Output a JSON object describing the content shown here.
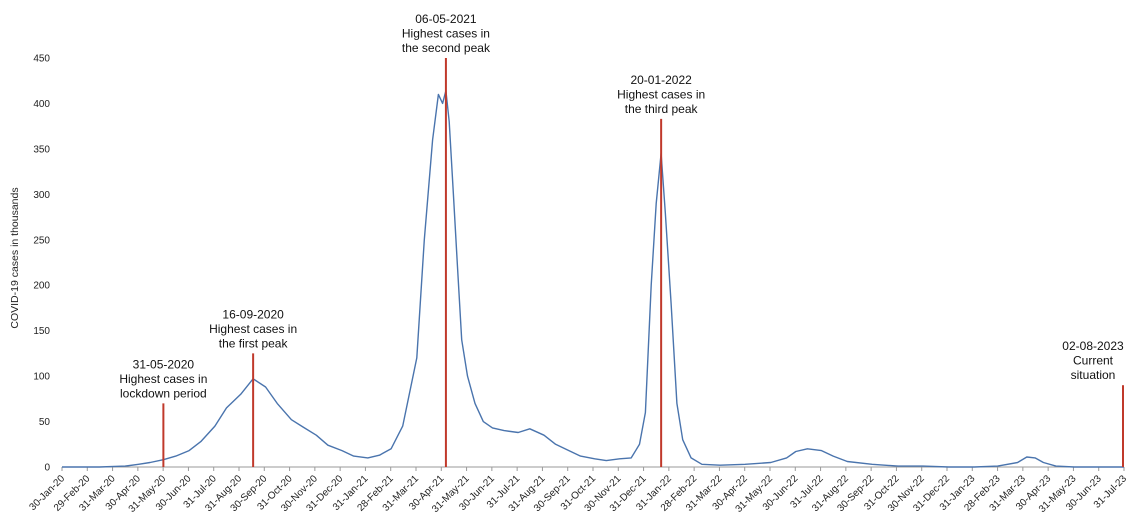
{
  "chart_data": {
    "type": "line",
    "ylabel": "COVID-19 cases in thousands",
    "xlabel": "",
    "ylim": [
      0,
      450
    ],
    "yticks": [
      0,
      50,
      100,
      150,
      200,
      250,
      300,
      350,
      400,
      450
    ],
    "grid": false,
    "line_color": "#4a74ad",
    "marker_color": "#c0392b",
    "x_range": [
      "2020-01-30",
      "2023-07-31"
    ],
    "xtick_labels": [
      "30-Jan-20",
      "29-Feb-20",
      "31-Mar-20",
      "30-Apr-20",
      "31-May-20",
      "30-Jun-20",
      "31-Jul-20",
      "31-Aug-20",
      "30-Sep-20",
      "31-Oct-20",
      "30-Nov-20",
      "31-Dec-20",
      "31-Jan-21",
      "28-Feb-21",
      "31-Mar-21",
      "30-Apr-21",
      "31-May-21",
      "30-Jun-21",
      "31-Jul-21",
      "31-Aug-21",
      "30-Sep-21",
      "31-Oct-21",
      "30-Nov-21",
      "31-Dec-21",
      "31-Jan-22",
      "28-Feb-22",
      "31-Mar-22",
      "30-Apr-22",
      "31-May-22",
      "30-Jun-22",
      "31-Jul-22",
      "31-Aug-22",
      "30-Sep-22",
      "31-Oct-22",
      "30-Nov-22",
      "31-Dec-22",
      "31-Jan-23",
      "28-Feb-23",
      "31-Mar-23",
      "30-Apr-23",
      "31-May-23",
      "30-Jun-23",
      "31-Jul-23"
    ],
    "series": [
      {
        "name": "",
        "x": [
          "2020-01-30",
          "2020-03-15",
          "2020-04-15",
          "2020-05-01",
          "2020-05-15",
          "2020-05-31",
          "2020-06-15",
          "2020-07-01",
          "2020-07-15",
          "2020-08-01",
          "2020-08-15",
          "2020-09-01",
          "2020-09-16",
          "2020-10-01",
          "2020-10-15",
          "2020-11-01",
          "2020-11-15",
          "2020-12-01",
          "2020-12-15",
          "2021-01-01",
          "2021-01-15",
          "2021-02-01",
          "2021-02-15",
          "2021-03-01",
          "2021-03-15",
          "2021-04-01",
          "2021-04-10",
          "2021-04-20",
          "2021-04-27",
          "2021-05-02",
          "2021-05-06",
          "2021-05-10",
          "2021-05-15",
          "2021-05-20",
          "2021-05-25",
          "2021-06-01",
          "2021-06-10",
          "2021-06-20",
          "2021-07-01",
          "2021-07-15",
          "2021-08-01",
          "2021-08-15",
          "2021-09-01",
          "2021-09-15",
          "2021-10-01",
          "2021-10-15",
          "2021-11-01",
          "2021-11-15",
          "2021-12-01",
          "2021-12-15",
          "2021-12-25",
          "2022-01-01",
          "2022-01-08",
          "2022-01-14",
          "2022-01-20",
          "2022-01-25",
          "2022-02-01",
          "2022-02-08",
          "2022-02-15",
          "2022-02-25",
          "2022-03-10",
          "2022-04-01",
          "2022-05-01",
          "2022-06-01",
          "2022-06-20",
          "2022-07-01",
          "2022-07-15",
          "2022-08-01",
          "2022-08-15",
          "2022-09-01",
          "2022-10-01",
          "2022-11-01",
          "2022-12-01",
          "2023-01-01",
          "2023-02-01",
          "2023-03-01",
          "2023-03-25",
          "2023-04-05",
          "2023-04-15",
          "2023-04-25",
          "2023-05-10",
          "2023-06-01",
          "2023-07-01",
          "2023-07-31"
        ],
        "y": [
          0,
          0,
          1,
          3,
          5,
          8,
          12,
          18,
          28,
          45,
          65,
          80,
          97,
          88,
          70,
          52,
          44,
          35,
          24,
          18,
          12,
          10,
          13,
          20,
          45,
          120,
          250,
          360,
          410,
          400,
          414,
          380,
          300,
          220,
          140,
          100,
          70,
          50,
          43,
          40,
          38,
          42,
          35,
          25,
          18,
          12,
          9,
          7,
          9,
          10,
          25,
          60,
          200,
          290,
          345,
          280,
          180,
          70,
          30,
          10,
          3,
          2,
          3,
          5,
          10,
          17,
          20,
          18,
          12,
          6,
          3,
          1,
          1,
          0,
          0,
          1,
          5,
          11,
          10,
          5,
          1,
          0,
          0,
          0
        ]
      }
    ],
    "annotations": [
      {
        "date": "2020-05-31",
        "marker_top": 70,
        "lines": [
          "31-05-2020",
          "Highest cases in",
          "lockdown period"
        ]
      },
      {
        "date": "2020-09-16",
        "marker_top": 125,
        "lines": [
          "16-09-2020",
          "Highest cases in",
          "the first peak"
        ]
      },
      {
        "date": "2021-05-06",
        "marker_top": 450,
        "lines": [
          "06-05-2021",
          "Highest cases in",
          "the second peak"
        ]
      },
      {
        "date": "2022-01-20",
        "marker_top": 383,
        "lines": [
          "20-01-2022",
          "Highest cases in",
          "the third peak"
        ]
      },
      {
        "date": "2023-08-02",
        "marker_top": 90,
        "lines": [
          "02-08-2023",
          "Current",
          "situation"
        ]
      }
    ]
  }
}
